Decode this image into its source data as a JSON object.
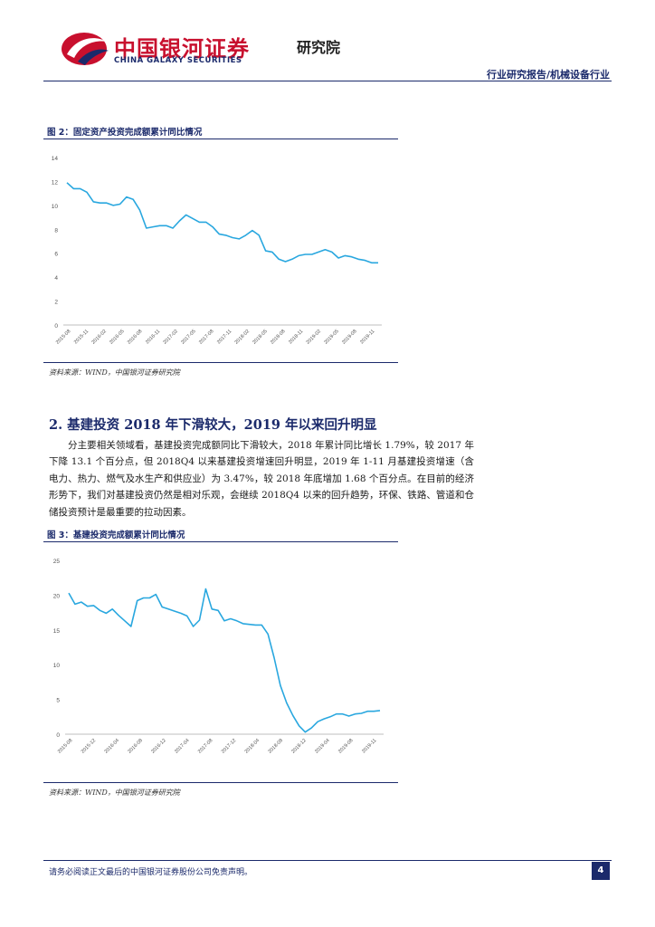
{
  "header": {
    "logo_cn": "中国银河证券",
    "logo_en": "CHINA GALAXY SECURITIES",
    "logo_sub": "研究院",
    "report_label": "行业研究报告/机械设备行业",
    "colors": {
      "brand_red": "#c8102e",
      "brand_navy": "#1b2a6b",
      "line_blue": "#29a7df"
    }
  },
  "figure2": {
    "title": "图 2：固定资产投资完成额累计同比情况",
    "source": "资料来源：WIND，中国银河证券研究院"
  },
  "section": {
    "heading": "2. 基建投资 2018 年下滑较大，2019 年以来回升明显",
    "paragraph": "分主要相关领域看，基建投资完成额同比下滑较大，2018 年累计同比增长 1.79%，较 2017 年下降 13.1 个百分点，但 2018Q4 以来基建投资增速回升明显，2019 年 1-11 月基建投资增速（含电力、热力、燃气及水生产和供应业）为 3.47%，较 2018 年底增加 1.68 个百分点。在目前的经济形势下，我们对基建投资仍然是相对乐观，会继续 2018Q4 以来的回升趋势，环保、铁路、管道和仓储投资预计是最重要的拉动因素。"
  },
  "figure3": {
    "title": "图 3：基建投资完成额累计同比情况",
    "source": "资料来源：WIND，中国银河证券研究院"
  },
  "footer": {
    "note": "请务必阅读正文最后的中国银河证券股份公司免责声明。",
    "page": "4"
  },
  "chart_data": [
    {
      "type": "line",
      "title": "",
      "xlabel": "",
      "ylabel": "",
      "ylim": [
        0,
        14
      ],
      "yticks": [
        0,
        2,
        4,
        6,
        8,
        10,
        12,
        14
      ],
      "grid": false,
      "legend": "none",
      "x_tick_labels": [
        "2015-08",
        "2015-11",
        "2016-02",
        "2016-05",
        "2016-08",
        "2016-11",
        "2017-02",
        "2017-05",
        "2017-08",
        "2017-11",
        "2018-02",
        "2018-05",
        "2018-08",
        "2018-11",
        "2019-02",
        "2019-05",
        "2019-08",
        "2019-11"
      ],
      "series": [
        {
          "values": [
            11.9,
            11.4,
            11.4,
            11.1,
            10.3,
            10.2,
            10.2,
            10.0,
            10.1,
            10.7,
            10.5,
            9.6,
            8.1,
            8.2,
            8.3,
            8.3,
            8.1,
            8.7,
            9.2,
            8.9,
            8.6,
            8.6,
            8.2,
            7.6,
            7.5,
            7.3,
            7.2,
            7.5,
            7.9,
            7.5,
            6.2,
            6.1,
            5.5,
            5.3,
            5.5,
            5.8,
            5.9,
            5.9,
            6.1,
            6.3,
            6.1,
            5.6,
            5.8,
            5.7,
            5.5,
            5.4,
            5.2,
            5.2
          ]
        }
      ]
    },
    {
      "type": "line",
      "title": "",
      "xlabel": "",
      "ylabel": "",
      "ylim": [
        0,
        25
      ],
      "yticks": [
        0,
        5,
        10,
        15,
        20,
        25
      ],
      "grid": false,
      "legend": "none",
      "x_tick_labels": [
        "2015-08",
        "2015-12",
        "2016-04",
        "2016-08",
        "2016-12",
        "2017-04",
        "2017-08",
        "2017-12",
        "2018-04",
        "2018-08",
        "2018-12",
        "2019-04",
        "2019-08",
        "2019-11"
      ],
      "series": [
        {
          "values": [
            20.3,
            18.7,
            19.0,
            18.4,
            18.5,
            17.8,
            17.4,
            18.0,
            17.1,
            16.3,
            15.5,
            19.2,
            19.6,
            19.6,
            20.1,
            18.3,
            18.0,
            17.7,
            17.4,
            17.0,
            15.5,
            16.4,
            20.9,
            18.0,
            17.8,
            16.3,
            16.6,
            16.3,
            15.9,
            15.8,
            15.7,
            15.7,
            14.4,
            11.0,
            7.0,
            4.5,
            2.7,
            1.2,
            0.3,
            0.9,
            1.8,
            2.2,
            2.5,
            2.9,
            2.9,
            2.6,
            2.9,
            3.0,
            3.3,
            3.3,
            3.4
          ]
        }
      ]
    }
  ]
}
